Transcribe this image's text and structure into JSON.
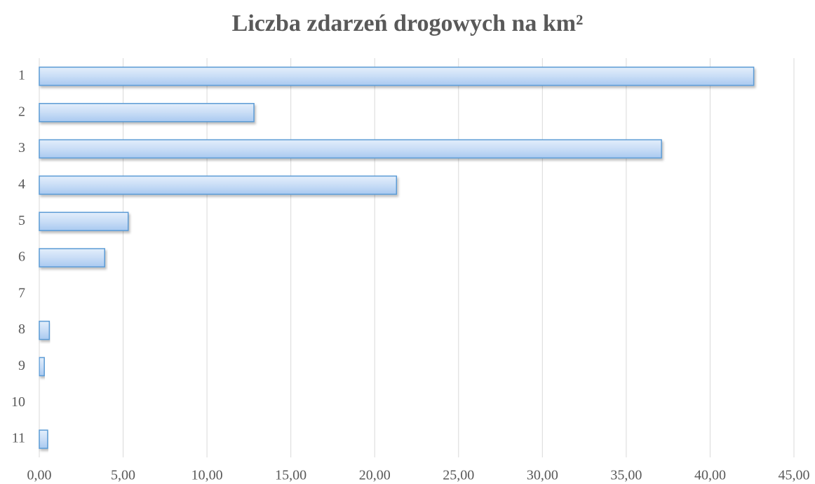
{
  "chart_data": {
    "type": "barh",
    "title": "Liczba zdarzeń drogowych na km²",
    "categories": [
      "1",
      "2",
      "3",
      "4",
      "5",
      "6",
      "7",
      "8",
      "9",
      "10",
      "11"
    ],
    "values": [
      42.6,
      12.8,
      37.1,
      21.3,
      5.3,
      3.9,
      0,
      0.6,
      0.3,
      0,
      0.5
    ],
    "color": "#5b9bd5",
    "xlim": [
      0,
      45
    ],
    "xticks": [
      {
        "value": 0,
        "label": "0,00"
      },
      {
        "value": 5,
        "label": "5,00"
      },
      {
        "value": 10,
        "label": "10,00"
      },
      {
        "value": 15,
        "label": "15,00"
      },
      {
        "value": 20,
        "label": "20,00"
      },
      {
        "value": 25,
        "label": "25,00"
      },
      {
        "value": 30,
        "label": "30,00"
      },
      {
        "value": 35,
        "label": "35,00"
      },
      {
        "value": 40,
        "label": "40,00"
      },
      {
        "value": 45,
        "label": "45,00"
      }
    ],
    "grid": true
  }
}
